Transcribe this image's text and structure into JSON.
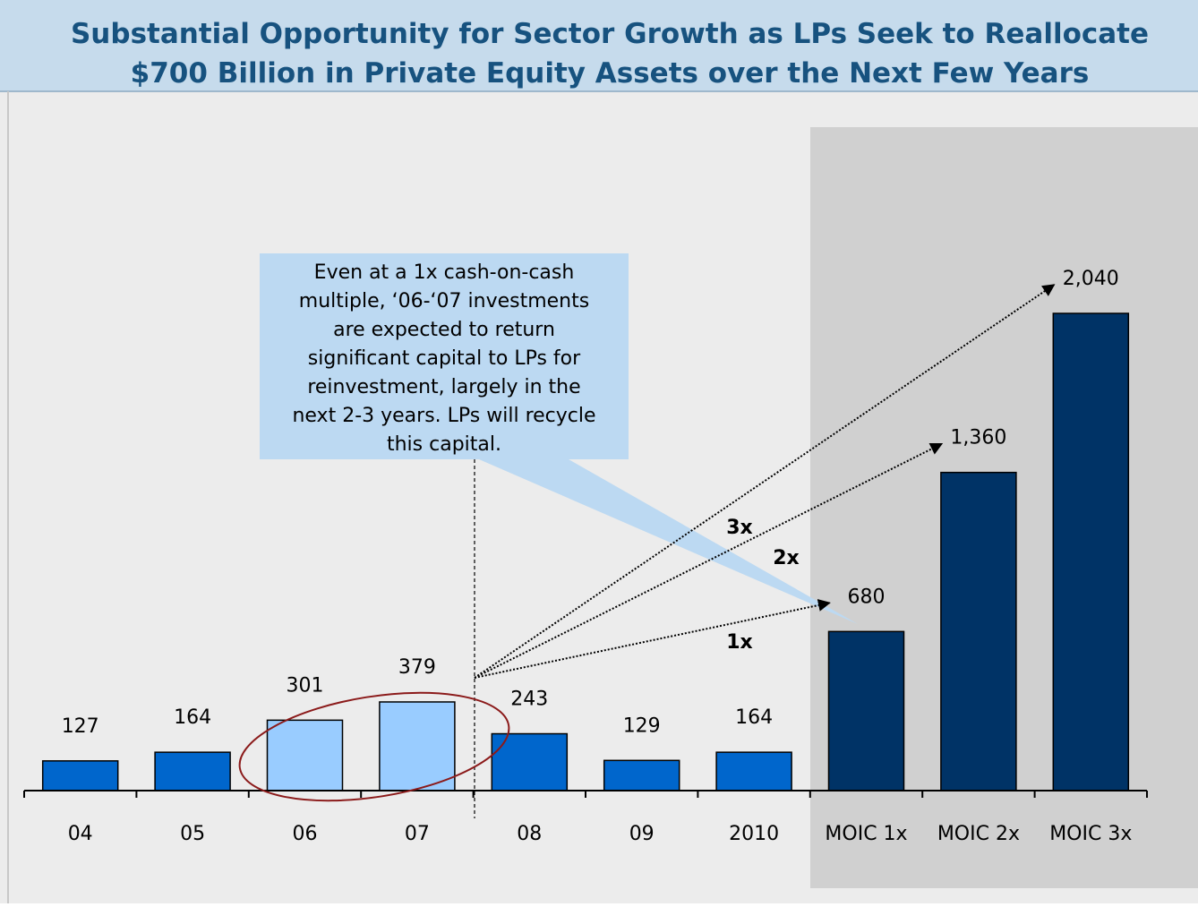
{
  "title": [
    "Substantial Opportunity for Sector Growth as LPs Seek to Reallocate",
    "$700 Billion in Private Equity Assets over the Next Few Years"
  ],
  "chart_data": {
    "type": "bar",
    "categories": [
      "04",
      "05",
      "06",
      "07",
      "08",
      "09",
      "2010",
      "MOIC 1x",
      "MOIC 2x",
      "MOIC 3x"
    ],
    "values": [
      127,
      164,
      301,
      379,
      243,
      129,
      164,
      680,
      1360,
      2040
    ],
    "value_labels": [
      "127",
      "164",
      "301",
      "379",
      "243",
      "129",
      "164",
      "680",
      "1,360",
      "2,040"
    ],
    "colors": [
      "#0066cc",
      "#0066cc",
      "#99ccff",
      "#99ccff",
      "#0066cc",
      "#0066cc",
      "#0066cc",
      "#003366",
      "#003366",
      "#003366"
    ],
    "annotation": [
      "Even at a 1x cash-on-cash",
      "multiple, ‘06-‘07 investments",
      "are expected to return",
      "significant capital to LPs for",
      "reinvestment, largely in the",
      "next 2-3 years. LPs will recycle",
      "this capital."
    ],
    "multiples": [
      "1x",
      "2x",
      "3x"
    ]
  }
}
